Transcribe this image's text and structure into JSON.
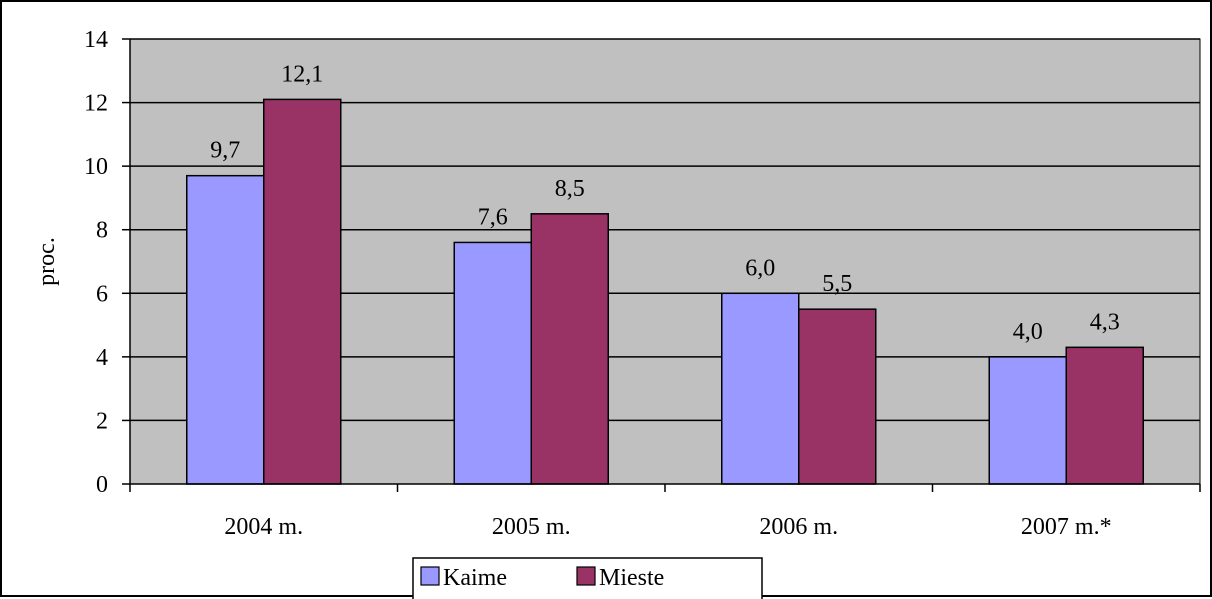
{
  "chart_data": {
    "type": "bar",
    "title": "",
    "xlabel": "",
    "ylabel": "proc.",
    "ylim": [
      0,
      14
    ],
    "ytick_step": 2,
    "grid": true,
    "legend_position": "bottom",
    "plot_background": "#c0c0c0",
    "categories": [
      "2004 m.",
      "2005 m.",
      "2006 m.",
      "2007 m.*"
    ],
    "series": [
      {
        "name": "Kaime",
        "color": "#9999ff",
        "values": [
          9.7,
          7.6,
          6.0,
          4.0
        ],
        "labels": [
          "9,7",
          "7,6",
          "6,0",
          "4,0"
        ]
      },
      {
        "name": "Mieste",
        "color": "#993366",
        "values": [
          12.1,
          8.5,
          5.5,
          4.3
        ],
        "labels": [
          "12,1",
          "8,5",
          "5,5",
          "4,3"
        ]
      }
    ]
  }
}
